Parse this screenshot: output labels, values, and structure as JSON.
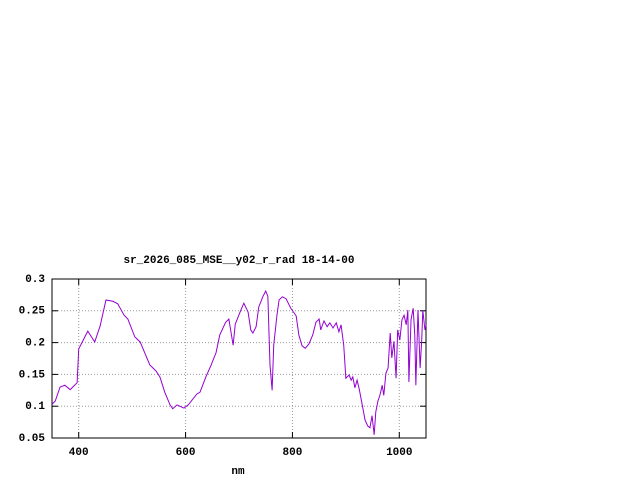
{
  "chart_data": {
    "type": "line",
    "title": "sr_2026_085_MSE__y02_r_rad 18-14-00",
    "x_label": "nm",
    "x": [
      350,
      356,
      365,
      374,
      384,
      397,
      400,
      406,
      417,
      430,
      440,
      451,
      464,
      473,
      485,
      492,
      505,
      515,
      526,
      533,
      545,
      552,
      561,
      571,
      576,
      584,
      597,
      605,
      621,
      627,
      638,
      648,
      657,
      664,
      675,
      681,
      689,
      693,
      702,
      709,
      717,
      722,
      726,
      732,
      737,
      745,
      750,
      754,
      758,
      762,
      765,
      771,
      775,
      781,
      788,
      794,
      797,
      807,
      812,
      818,
      824,
      831,
      838,
      844,
      850,
      853,
      859,
      865,
      870,
      876,
      882,
      887,
      891,
      896,
      900,
      906,
      910,
      913,
      917,
      921,
      925,
      930,
      936,
      941,
      945,
      949,
      953,
      956,
      960,
      964,
      968,
      971,
      975,
      979,
      983,
      986,
      990,
      994,
      997,
      1001,
      1005,
      1009,
      1013,
      1016,
      1018,
      1022,
      1026,
      1029,
      1031,
      1035,
      1039,
      1042,
      1044,
      1048,
      1050
    ],
    "series": [
      {
        "color": "#9400d3",
        "values": [
          0.103,
          0.108,
          0.13,
          0.133,
          0.126,
          0.137,
          0.19,
          0.2,
          0.218,
          0.201,
          0.226,
          0.267,
          0.265,
          0.261,
          0.243,
          0.237,
          0.209,
          0.201,
          0.179,
          0.165,
          0.155,
          0.146,
          0.122,
          0.102,
          0.096,
          0.102,
          0.097,
          0.102,
          0.119,
          0.122,
          0.146,
          0.165,
          0.184,
          0.212,
          0.232,
          0.237,
          0.196,
          0.229,
          0.248,
          0.262,
          0.248,
          0.22,
          0.215,
          0.225,
          0.256,
          0.273,
          0.281,
          0.273,
          0.165,
          0.125,
          0.196,
          0.243,
          0.267,
          0.272,
          0.269,
          0.259,
          0.254,
          0.242,
          0.212,
          0.195,
          0.191,
          0.198,
          0.212,
          0.232,
          0.237,
          0.22,
          0.234,
          0.225,
          0.231,
          0.223,
          0.231,
          0.217,
          0.228,
          0.196,
          0.144,
          0.149,
          0.141,
          0.146,
          0.129,
          0.141,
          0.127,
          0.105,
          0.078,
          0.069,
          0.066,
          0.085,
          0.055,
          0.091,
          0.108,
          0.118,
          0.133,
          0.117,
          0.152,
          0.16,
          0.215,
          0.176,
          0.202,
          0.144,
          0.22,
          0.204,
          0.236,
          0.243,
          0.228,
          0.251,
          0.138,
          0.236,
          0.254,
          0.212,
          0.133,
          0.251,
          0.16,
          0.204,
          0.251,
          0.22,
          0.228
        ]
      }
    ],
    "xlim": [
      350,
      1050
    ],
    "ylim": [
      0.05,
      0.3
    ],
    "xticks": [
      400,
      600,
      800,
      1000
    ],
    "yticks": [
      0.05,
      0.1,
      0.15,
      0.2,
      0.25,
      0.3
    ],
    "grid": true
  }
}
